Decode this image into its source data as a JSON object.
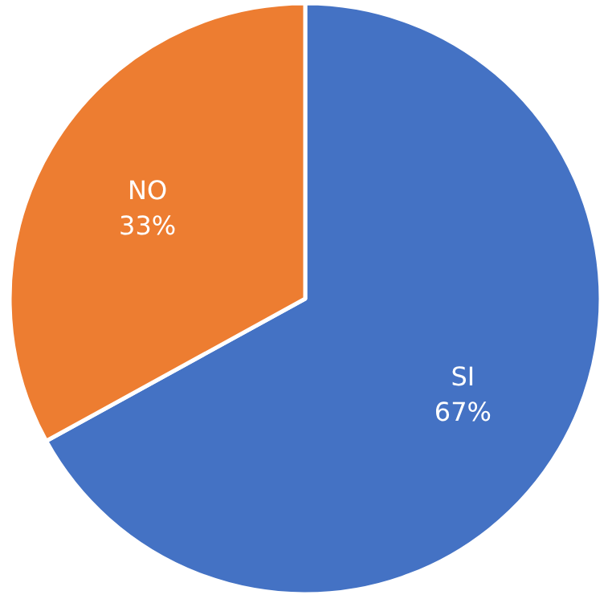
{
  "chart_data": {
    "type": "pie",
    "categories": [
      "SI",
      "NO"
    ],
    "values": [
      67,
      33
    ],
    "colors": [
      "#4472c4",
      "#ed7d31"
    ],
    "value_labels": [
      "67%",
      "33%"
    ]
  }
}
